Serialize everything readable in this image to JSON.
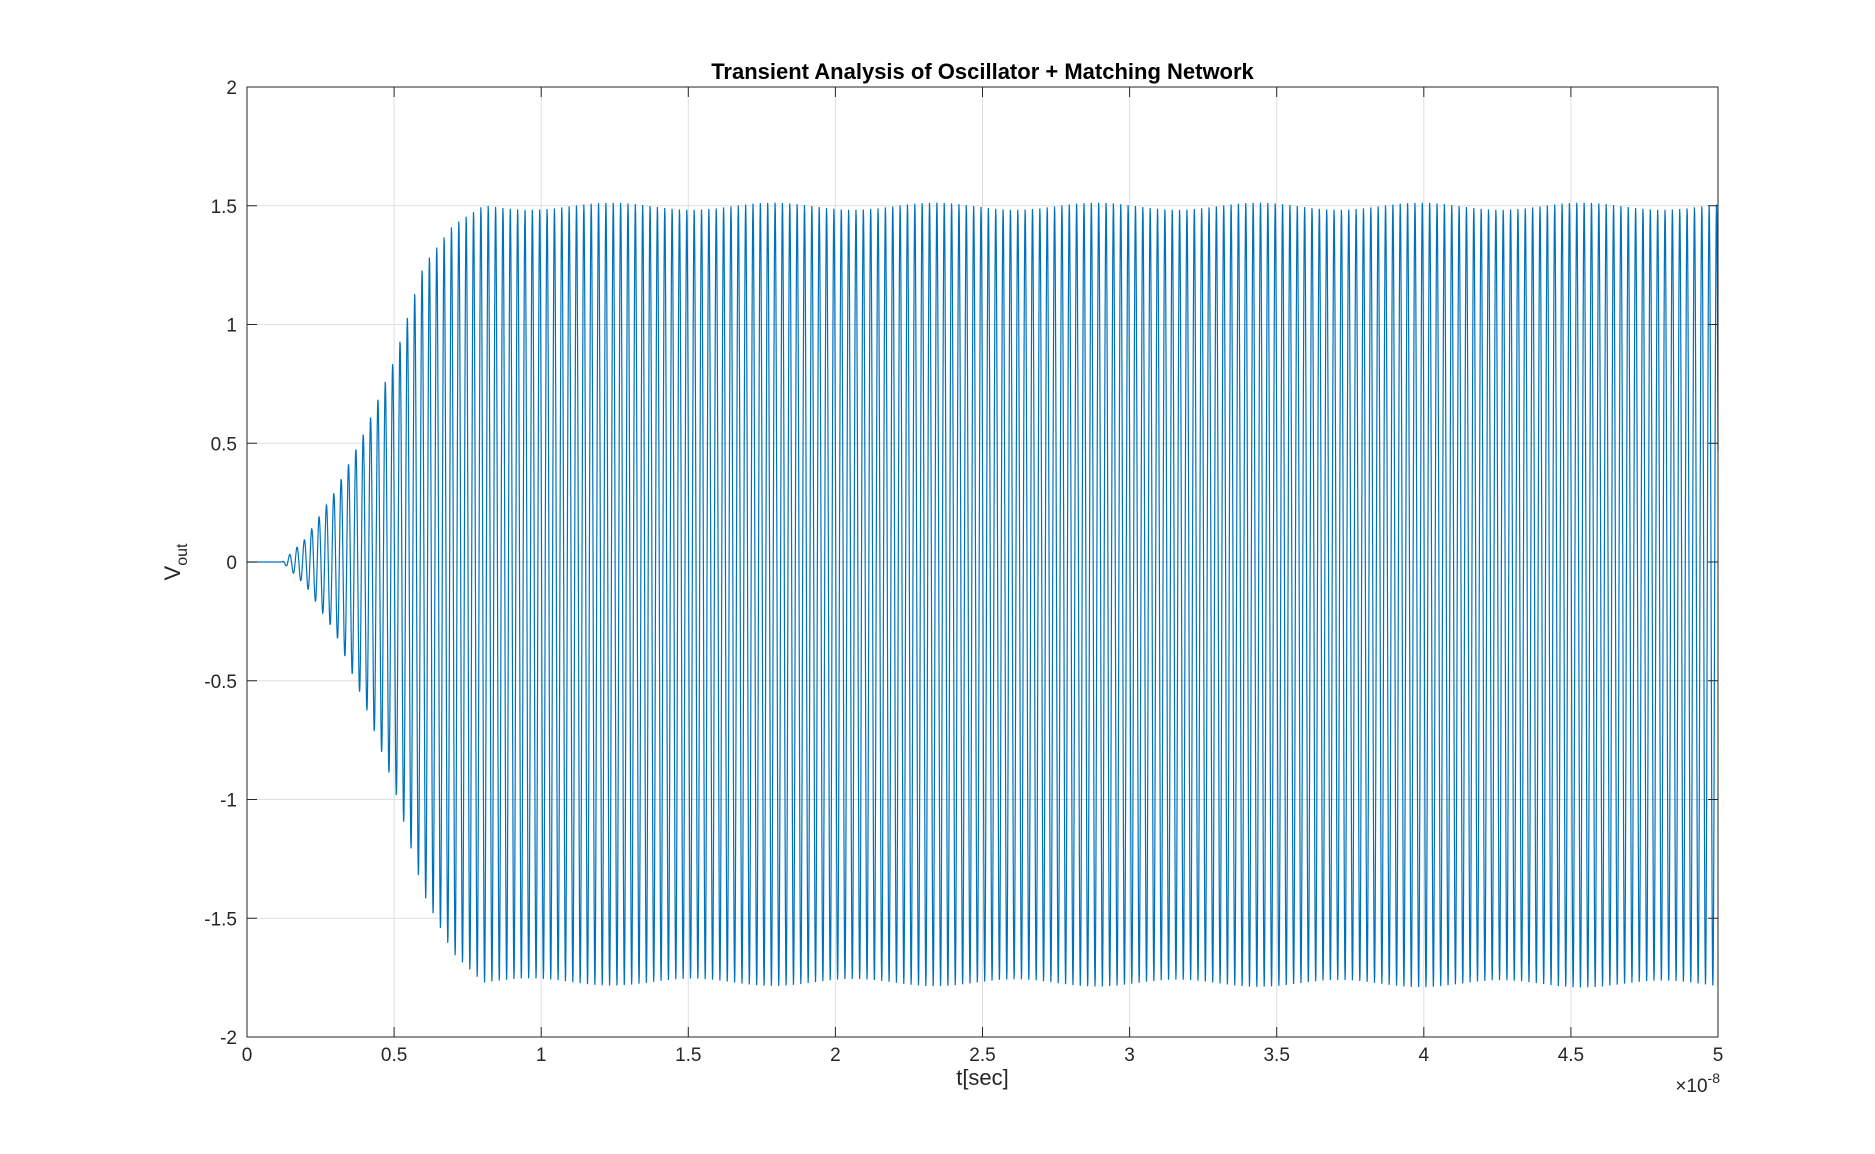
{
  "chart_data": {
    "type": "line",
    "title": "Transient Analysis of Oscillator + Matching Network",
    "xlabel": "t[sec]",
    "ylabel_main": "V",
    "ylabel_sub": "out",
    "x_exponent_label": "×10",
    "x_exponent_power": "-8",
    "x_scale": 1e-08,
    "xlim": [
      0,
      5
    ],
    "ylim": [
      -2,
      2
    ],
    "xticks": [
      0,
      0.5,
      1,
      1.5,
      2,
      2.5,
      3,
      3.5,
      4,
      4.5,
      5
    ],
    "xtick_labels": [
      "0",
      "0.5",
      "1",
      "1.5",
      "2",
      "2.5",
      "3",
      "3.5",
      "4",
      "4.5",
      "5"
    ],
    "yticks": [
      -2,
      -1.5,
      -1,
      -0.5,
      0,
      0.5,
      1,
      1.5,
      2
    ],
    "ytick_labels": [
      "-2",
      "-1.5",
      "-1",
      "-0.5",
      "0",
      "0.5",
      "1",
      "1.5",
      "2"
    ],
    "grid": true,
    "series": [
      {
        "color": "#0072BD",
        "description": "Oscillation starting at ~0.12e-8 s, growing until ~0.8e-8 s, then steady state",
        "oscillation_period": 0.025,
        "oscillation_start": 0.12,
        "settling_time": 0.8,
        "steady_state_max": 1.5,
        "steady_state_min": -1.78,
        "envelope_points": [
          {
            "t": 0.0,
            "max": 0.0,
            "min": 0.0
          },
          {
            "t": 0.12,
            "max": 0.0,
            "min": 0.0
          },
          {
            "t": 0.2,
            "max": 0.1,
            "min": -0.1
          },
          {
            "t": 0.3,
            "max": 0.3,
            "min": -0.3
          },
          {
            "t": 0.4,
            "max": 0.55,
            "min": -0.6
          },
          {
            "t": 0.5,
            "max": 0.85,
            "min": -0.95
          },
          {
            "t": 0.6,
            "max": 1.25,
            "min": -1.4
          },
          {
            "t": 0.7,
            "max": 1.42,
            "min": -1.65
          },
          {
            "t": 0.8,
            "max": 1.5,
            "min": -1.77
          },
          {
            "t": 5.0,
            "max": 1.5,
            "min": -1.78
          }
        ]
      }
    ]
  }
}
